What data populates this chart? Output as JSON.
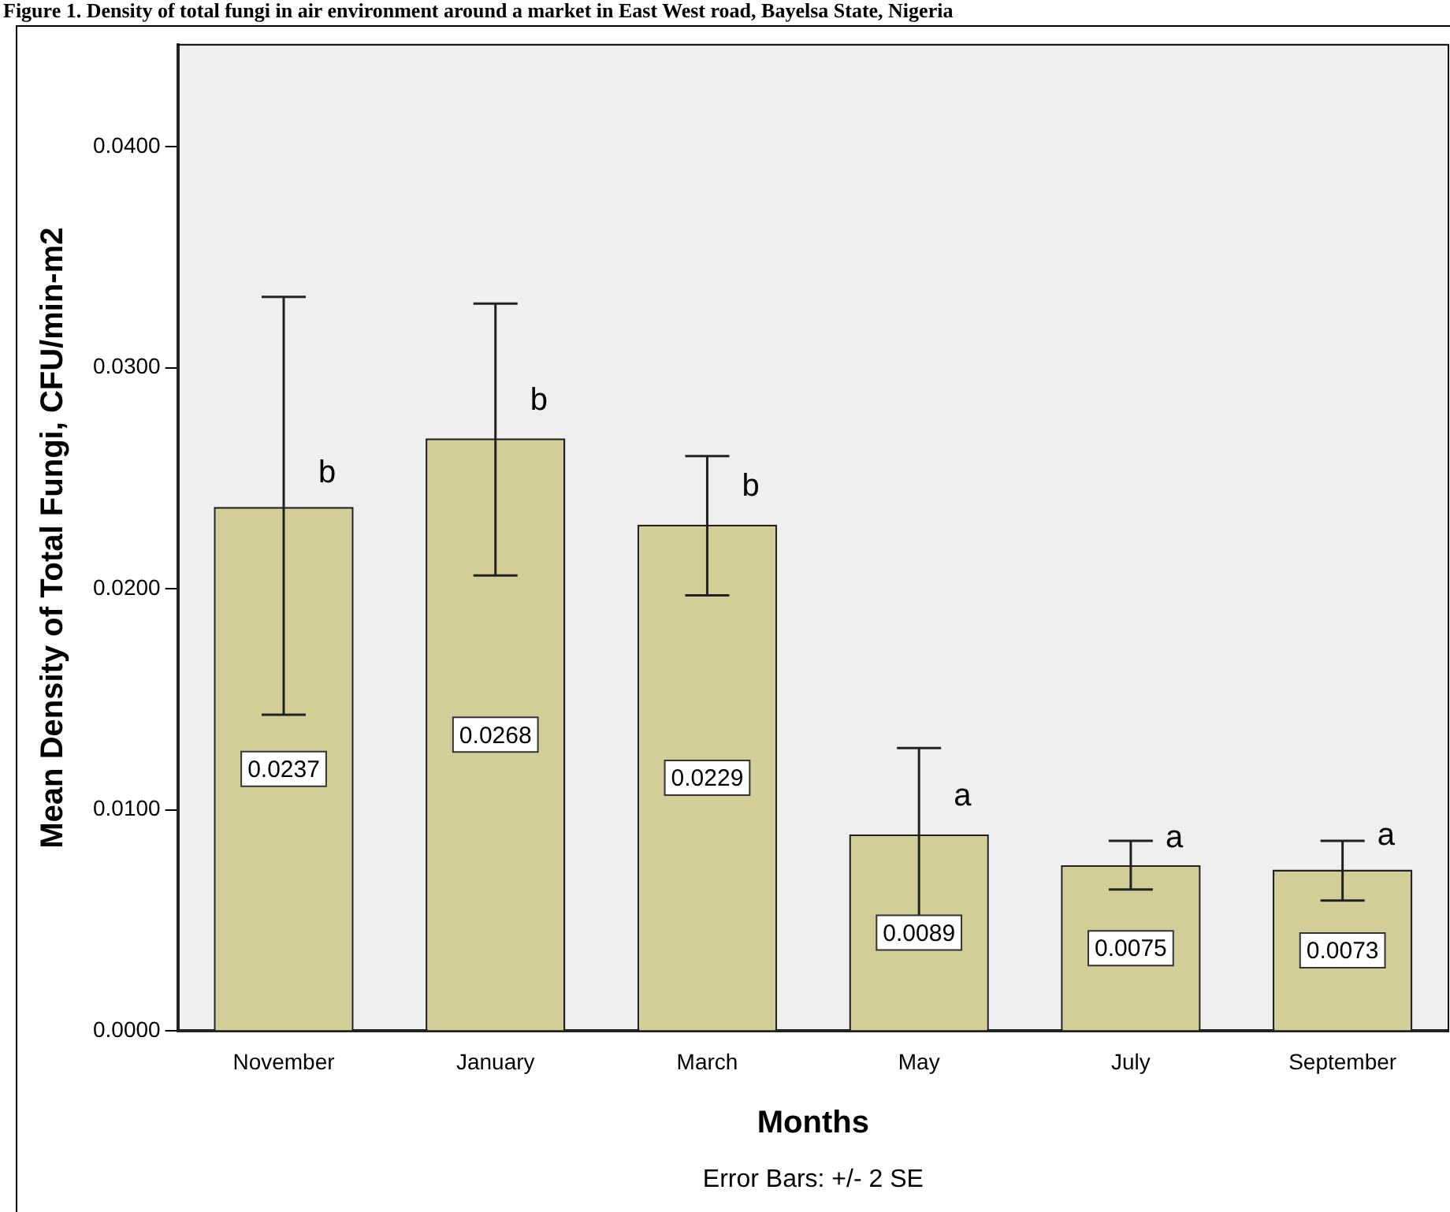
{
  "chart_data": {
    "type": "bar",
    "title": "Figure 1. Density of total fungi in air environment around a market in East West road, Bayelsa State, Nigeria",
    "xlabel": "Months",
    "ylabel": "Mean Density of Total Fungi, CFU/min-m2",
    "categories": [
      "November",
      "January",
      "March",
      "May",
      "July",
      "September"
    ],
    "values": [
      0.0237,
      0.0268,
      0.0229,
      0.0089,
      0.0075,
      0.0073
    ],
    "errors": [
      [
        0.0143,
        0.0332
      ],
      [
        0.0206,
        0.0329
      ],
      [
        0.0197,
        0.026
      ],
      [
        0.005,
        0.0128
      ],
      [
        0.0064,
        0.0086
      ],
      [
        0.0059,
        0.0086
      ]
    ],
    "color": "#d3ce97",
    "data_labels": true,
    "ylim": [
      0,
      0.0446
    ],
    "yticks": [
      {
        "value": 0,
        "label": "0.0000"
      },
      {
        "value": 0.01,
        "label": "0.0100"
      },
      {
        "value": 0.02,
        "label": "0.0200"
      },
      {
        "value": 0.03,
        "label": "0.0300"
      },
      {
        "value": 0.04,
        "label": "0.0400"
      }
    ],
    "grid": false,
    "legend": false,
    "annotations": [
      {
        "text": "b",
        "x": "November",
        "y": 0.0252
      },
      {
        "text": "b",
        "x": "January",
        "y": 0.0285
      },
      {
        "text": "b",
        "x": "March",
        "y": 0.0246
      },
      {
        "text": "a",
        "x": "May",
        "y": 0.0106
      },
      {
        "text": "a",
        "x": "July",
        "y": 0.0087
      },
      {
        "text": "a",
        "x": "September",
        "y": 0.0088
      },
      "Error Bars: +/- 2 SE"
    ]
  }
}
